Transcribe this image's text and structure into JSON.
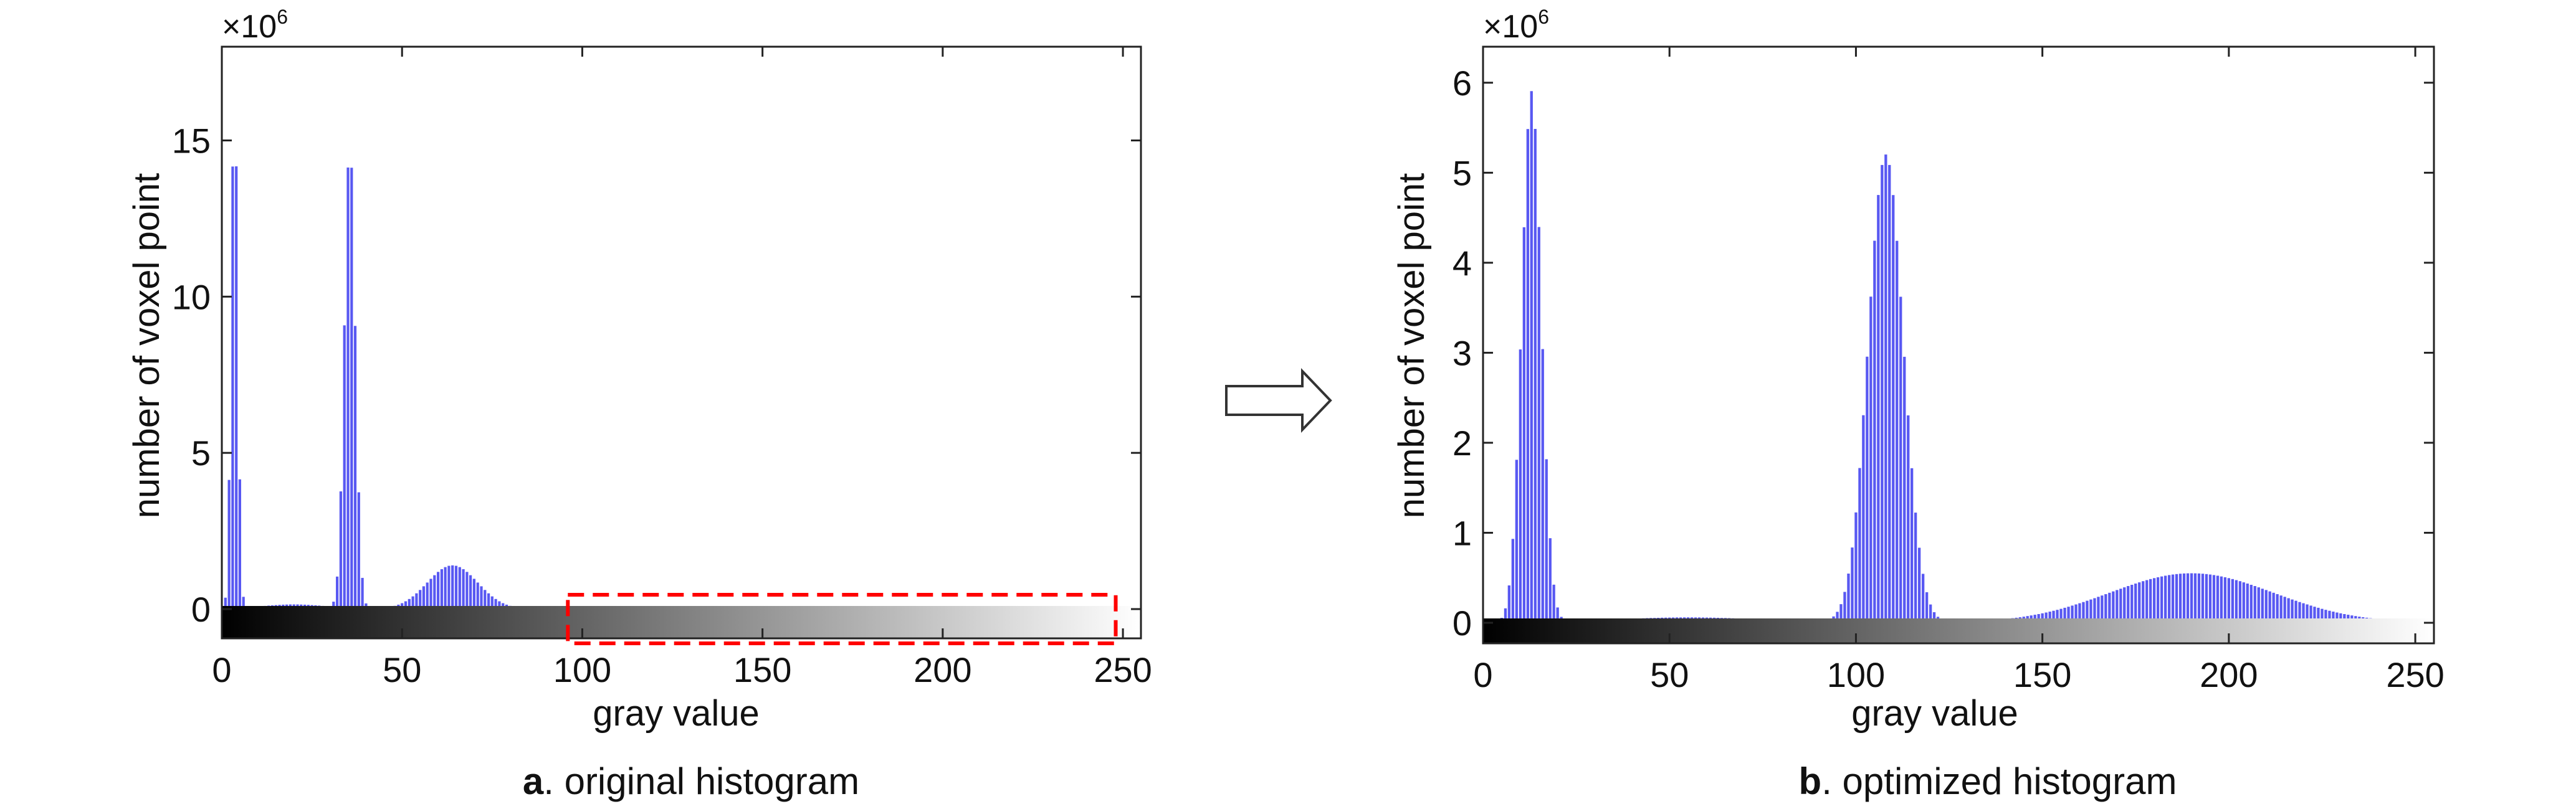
{
  "figure": {
    "arrow_icon": "right-arrow-icon",
    "bar_color": "#3b3bf0",
    "highlight_color": "#ff0000"
  },
  "chart_data": [
    {
      "type": "bar",
      "exponent_label": "×10",
      "exponent_power": "6",
      "xlabel": "gray value",
      "ylabel": "number of voxel point",
      "caption_letter": "a",
      "caption_text": ". original histogram",
      "xlim": [
        0,
        255
      ],
      "ylim": [
        -1.2,
        18
      ],
      "xticks": [
        0,
        50,
        100,
        150,
        200,
        250
      ],
      "xtick_labels": [
        "0",
        "50",
        "100",
        "150",
        "200",
        "250"
      ],
      "yticks": [
        0,
        5,
        10,
        15
      ],
      "ytick_labels": [
        "0",
        "5",
        "10",
        "15"
      ],
      "highlight_box_x": [
        96,
        248
      ],
      "components": [
        {
          "center": 3.5,
          "amplitude": 16.5,
          "sigma": 0.9
        },
        {
          "center": 35.5,
          "amplitude": 14.9,
          "sigma": 1.5
        },
        {
          "center": 64,
          "amplitude": 1.4,
          "sigma": 7
        },
        {
          "center": 20,
          "amplitude": 0.15,
          "sigma": 9
        }
      ],
      "x_range": [
        1,
        105
      ],
      "units": "millions of voxels"
    },
    {
      "type": "bar",
      "exponent_label": "×10",
      "exponent_power": "6",
      "xlabel": "gray value",
      "ylabel": "number of voxel point",
      "caption_letter": "b",
      "caption_text": ". optimized histogram",
      "xlim": [
        0,
        255
      ],
      "ylim": [
        -0.25,
        6.4
      ],
      "xticks": [
        0,
        50,
        100,
        150,
        200,
        250
      ],
      "xtick_labels": [
        "0",
        "50",
        "100",
        "150",
        "200",
        "250"
      ],
      "yticks": [
        0,
        1,
        2,
        3,
        4,
        5,
        6
      ],
      "ytick_labels": [
        "0",
        "1",
        "2",
        "3",
        "4",
        "5",
        "6"
      ],
      "components": [
        {
          "center": 13,
          "amplitude": 5.9,
          "sigma": 2.6
        },
        {
          "center": 108,
          "amplitude": 5.2,
          "sigma": 4.7
        },
        {
          "center": 190,
          "amplitude": 0.55,
          "sigma": 22
        },
        {
          "center": 55,
          "amplitude": 0.06,
          "sigma": 20
        }
      ],
      "x_range": [
        0,
        255
      ],
      "units": "millions of voxels"
    }
  ]
}
